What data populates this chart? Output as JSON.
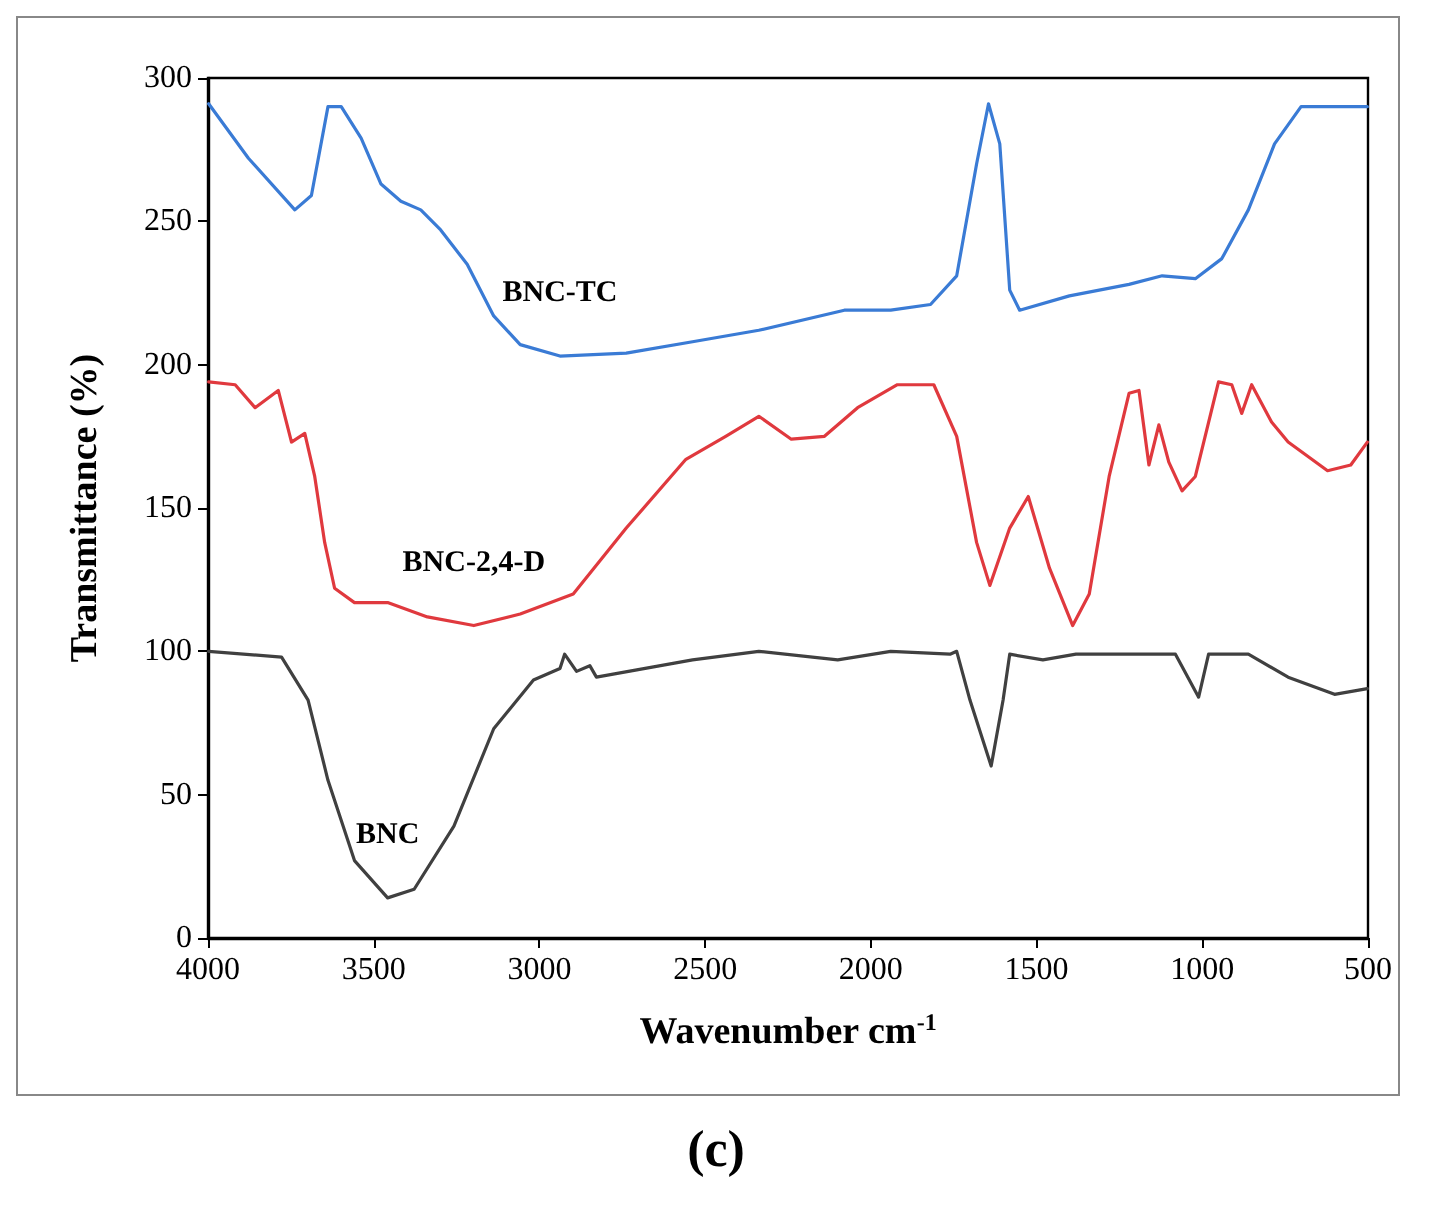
{
  "chart_data": {
    "type": "line",
    "xlabel": "Wavenumber cm$^{-1}$",
    "ylabel": "Transmittance (%)",
    "xlim": [
      4000,
      500
    ],
    "xticks": [
      4000,
      3500,
      3000,
      2500,
      2000,
      1500,
      1000,
      500
    ],
    "ylim": [
      0,
      300
    ],
    "yticks": [
      0,
      50,
      100,
      150,
      200,
      250,
      300
    ],
    "grid": false,
    "marker": "none",
    "line_style": "solid",
    "series": [
      {
        "name": "BNC-TC",
        "color": "#3a7bd5",
        "x": [
          3998,
          3878,
          3738,
          3688,
          3638,
          3598,
          3538,
          3478,
          3418,
          3358,
          3298,
          3218,
          3138,
          3058,
          2938,
          2738,
          2538,
          2338,
          2080,
          1940,
          1820,
          1741,
          1681,
          1645,
          1611,
          1581,
          1551,
          1401,
          1221,
          1121,
          1021,
          941,
          861,
          782,
          702,
          502
        ],
        "values": [
          291,
          272,
          254,
          259,
          290,
          290,
          279,
          263,
          257,
          254,
          247,
          235,
          217,
          207,
          203,
          204,
          208,
          212,
          219,
          219,
          221,
          231,
          270,
          291,
          277,
          226,
          219,
          224,
          228,
          231,
          230,
          237,
          254,
          277,
          290,
          290
        ]
      },
      {
        "name": "BNC-2,4-D",
        "color": "#e0393e",
        "x": [
          3998,
          3918,
          3858,
          3788,
          3748,
          3708,
          3678,
          3648,
          3618,
          3558,
          3458,
          3338,
          3198,
          3058,
          2898,
          2738,
          2558,
          2438,
          2338,
          2240,
          2140,
          2040,
          1920,
          1810,
          1741,
          1681,
          1641,
          1581,
          1525,
          1461,
          1391,
          1341,
          1281,
          1221,
          1191,
          1161,
          1131,
          1101,
          1061,
          1021,
          951,
          911,
          881,
          851,
          791,
          741,
          622,
          552,
          502
        ],
        "values": [
          194,
          193,
          185,
          191,
          173,
          176,
          161,
          138,
          122,
          117,
          117,
          112,
          109,
          113,
          120,
          143,
          167,
          175,
          182,
          174,
          175,
          185,
          193,
          193,
          175,
          138,
          123,
          143,
          154,
          129,
          109,
          120,
          161,
          190,
          191,
          165,
          179,
          166,
          156,
          161,
          194,
          193,
          183,
          193,
          180,
          173,
          163,
          165,
          173
        ]
      },
      {
        "name": "BNC",
        "color": "#404040",
        "x": [
          3998,
          3778,
          3698,
          3638,
          3558,
          3458,
          3378,
          3258,
          3138,
          3018,
          2938,
          2924,
          2888,
          2848,
          2828,
          2538,
          2338,
          2100,
          1940,
          1761,
          1741,
          1701,
          1637,
          1601,
          1581,
          1481,
          1381,
          1221,
          1081,
          1011,
          981,
          861,
          741,
          601,
          502
        ],
        "values": [
          100,
          98,
          83,
          55,
          27,
          14,
          17,
          39,
          73,
          90,
          94,
          99,
          93,
          95,
          91,
          97,
          100,
          97,
          100,
          99,
          100,
          83,
          60,
          83,
          99,
          97,
          99,
          99,
          99,
          84,
          99,
          99,
          91,
          85,
          87
        ]
      }
    ],
    "annotations": [
      "(c)"
    ]
  }
}
